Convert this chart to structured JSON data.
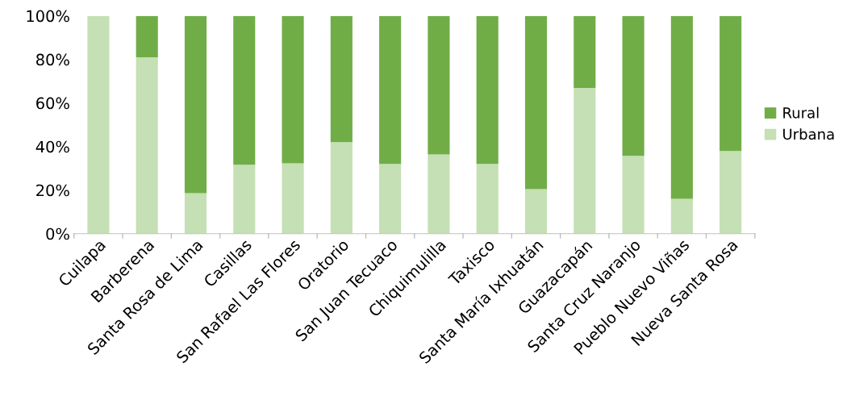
{
  "chart_data": {
    "type": "bar",
    "stacked": true,
    "categories": [
      "Cuilapa",
      "Barberena",
      "Santa Rosa de Lima",
      "Casillas",
      "San Rafael Las Flores",
      "Oratorio",
      "San Juan Tecuaco",
      "Chiquimulilla",
      "Taxisco",
      "Santa María Ixhuatán",
      "Guazacapán",
      "Santa Cruz Naranjo",
      "Pueblo Nuevo Viñas",
      "Nueva Santa Rosa"
    ],
    "series": [
      {
        "name": "Urbana",
        "color": "#c5e0b4",
        "values": [
          100,
          81,
          18.6,
          31.6,
          32.3,
          42,
          32,
          36.4,
          32,
          20.4,
          66.9,
          35.7,
          16,
          37.9
        ]
      },
      {
        "name": "Rural",
        "color": "#70ad47",
        "values": [
          0,
          19,
          81.4,
          68.4,
          67.7,
          58,
          68,
          63.6,
          68,
          79.6,
          33.1,
          64.3,
          84,
          62.1
        ]
      }
    ],
    "ylim": [
      0,
      100
    ],
    "yticks": [
      {
        "value": 0,
        "label": "0%"
      },
      {
        "value": 20,
        "label": "20%"
      },
      {
        "value": 40,
        "label": "40%"
      },
      {
        "value": 60,
        "label": "60%"
      },
      {
        "value": 80,
        "label": "80%"
      },
      {
        "value": 100,
        "label": "100%"
      }
    ],
    "grid": false,
    "legend": "right"
  }
}
